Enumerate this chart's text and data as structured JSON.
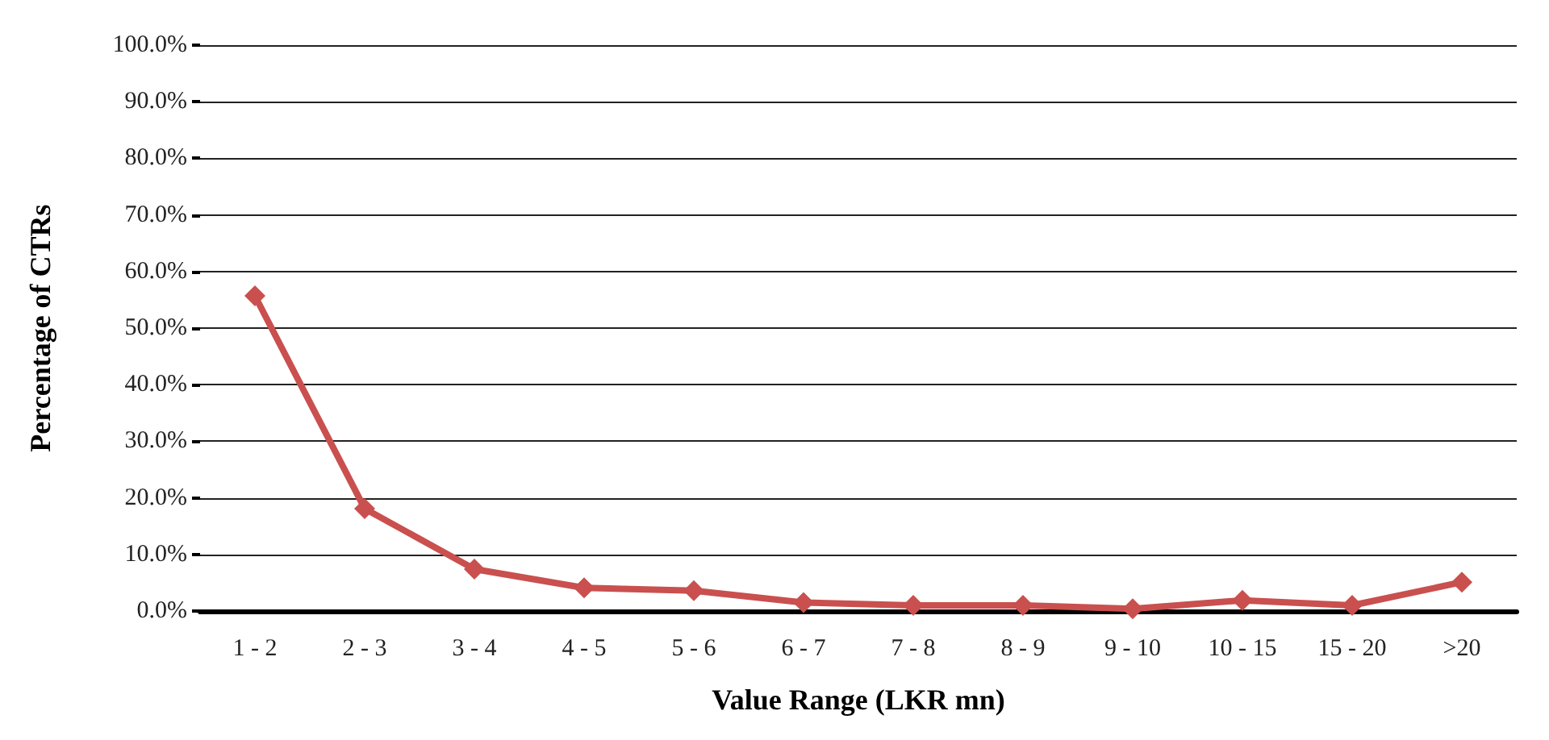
{
  "chart_data": {
    "type": "line",
    "xlabel": "Value Range (LKR mn)",
    "ylabel": "Percentage of CTRs",
    "categories": [
      "1 - 2",
      "2 - 3",
      "3 - 4",
      "4 - 5",
      "5 - 6",
      "6 - 7",
      "7 - 8",
      "8 - 9",
      "9 - 10",
      "10 - 15",
      "15 - 20",
      ">20"
    ],
    "series": [
      {
        "color": "#c9504e",
        "values": [
          55.7,
          18.1,
          7.4,
          4.1,
          3.6,
          1.5,
          1.0,
          1.0,
          0.4,
          1.9,
          1.0,
          5.1
        ]
      }
    ],
    "ylim": [
      0,
      100
    ],
    "yticks": [
      {
        "value": 0,
        "label": "0.0%"
      },
      {
        "value": 10,
        "label": "10.0%"
      },
      {
        "value": 20,
        "label": "20.0%"
      },
      {
        "value": 30,
        "label": "30.0%"
      },
      {
        "value": 40,
        "label": "40.0%"
      },
      {
        "value": 50,
        "label": "50.0%"
      },
      {
        "value": 60,
        "label": "60.0%"
      },
      {
        "value": 70,
        "label": "70.0%"
      },
      {
        "value": 80,
        "label": "80.0%"
      },
      {
        "value": 90,
        "label": "90.0%"
      },
      {
        "value": 100,
        "label": "100.0%"
      }
    ],
    "grid": "y",
    "marker": "diamond",
    "line_style": "solid"
  }
}
